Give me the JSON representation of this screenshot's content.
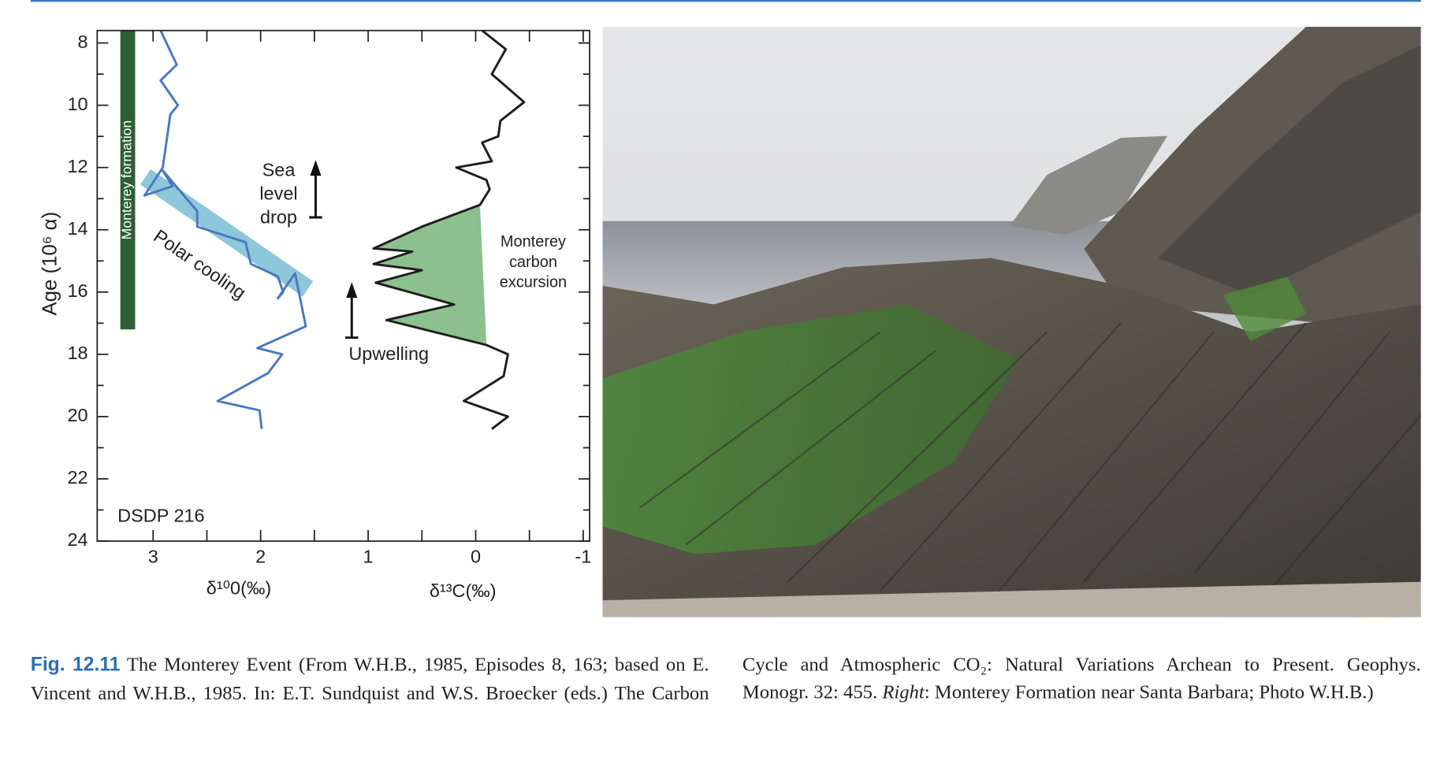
{
  "chart_data": {
    "type": "line",
    "ylabel": "Age (10⁶ α)",
    "xlabels": [
      "δ¹⁰0(‰)",
      "δ¹³C(‰)"
    ],
    "xlim": [
      3.52,
      -1.06
    ],
    "xticks": [
      3,
      2,
      1,
      0,
      -1
    ],
    "xminorticks": [
      2.5,
      1.5,
      0.5,
      -0.5
    ],
    "ylim": [
      7.6,
      24
    ],
    "yticks": [
      8,
      10,
      12,
      14,
      16,
      18,
      20,
      22,
      24
    ],
    "yminorticks": [
      9,
      11,
      13,
      15,
      17,
      19,
      21,
      23
    ],
    "reversed_y": true,
    "series": [
      {
        "color": "#4a78c0",
        "x": [
          2.93,
          2.78,
          2.93,
          2.77,
          2.84,
          2.91,
          3.08,
          2.82,
          2.91,
          2.59,
          2.59,
          2.14,
          2.09,
          1.84,
          1.79,
          1.84,
          1.68,
          1.58,
          2.03,
          1.8,
          1.93,
          2.4,
          2.01,
          1.99
        ],
        "y": [
          7.6,
          8.7,
          9.2,
          10.0,
          10.3,
          12.0,
          12.9,
          12.6,
          12.1,
          13.4,
          13.9,
          14.4,
          15.1,
          15.5,
          16.0,
          16.2,
          15.4,
          17.1,
          17.8,
          18.0,
          18.6,
          19.5,
          19.8,
          20.4
        ]
      },
      {
        "color": "#1e1e1e",
        "x": [
          -0.06,
          -0.28,
          -0.15,
          -0.45,
          -0.23,
          -0.21,
          -0.06,
          -0.15,
          0.18,
          -0.1,
          -0.13,
          -0.04,
          0.5,
          0.95,
          0.59,
          0.95,
          0.5,
          0.93,
          0.2,
          0.83,
          -0.1,
          -0.3,
          -0.26,
          0.11,
          -0.3,
          -0.15
        ],
        "y": [
          7.6,
          8.2,
          9.0,
          9.9,
          10.5,
          11.0,
          11.2,
          11.8,
          12.0,
          12.4,
          12.7,
          13.2,
          13.9,
          14.6,
          14.7,
          15.1,
          15.3,
          15.7,
          16.4,
          16.9,
          17.7,
          18.0,
          18.7,
          19.5,
          20.0,
          20.4
        ]
      }
    ],
    "excursion": {
      "label": [
        "Monterey",
        "carbon",
        "excursion"
      ],
      "color": "#8cc08f",
      "x": [
        -0.04,
        0.5,
        0.95,
        0.59,
        0.95,
        0.5,
        0.93,
        0.2,
        0.83,
        -0.1
      ],
      "y": [
        13.2,
        13.9,
        14.6,
        14.7,
        15.1,
        15.3,
        15.7,
        16.4,
        16.9,
        17.7
      ]
    },
    "band": {
      "label": "Polar cooling",
      "color": "#82c0d6",
      "x": [
        3.07,
        1.56
      ],
      "y": [
        12.3,
        15.9
      ]
    },
    "formation_bar": {
      "label": "Monterey formation",
      "color": "#2e5e34",
      "y": [
        7.6,
        17.2
      ]
    },
    "annotations": {
      "sea_level": [
        "Sea",
        "level",
        "drop"
      ],
      "upwelling": "Upwelling",
      "site": "DSDP 216"
    }
  },
  "caption": {
    "label": "Fig. 12.11",
    "text": "The Monterey Event (From W.H.B., 1985, Episodes 8, 163; based on E. Vincent and W.H.B., 1985. In: E.T. Sundquist and W.S. Broecker (eds.) The Carbon Cycle and Atmospheric CO₂: Natural Variations Archean to Present. Geophys. Monogr. 32: 455. ",
    "italic": "Right",
    "tail": ": Monterey Formation near Santa Barbara; Photo W.H.B.)"
  }
}
